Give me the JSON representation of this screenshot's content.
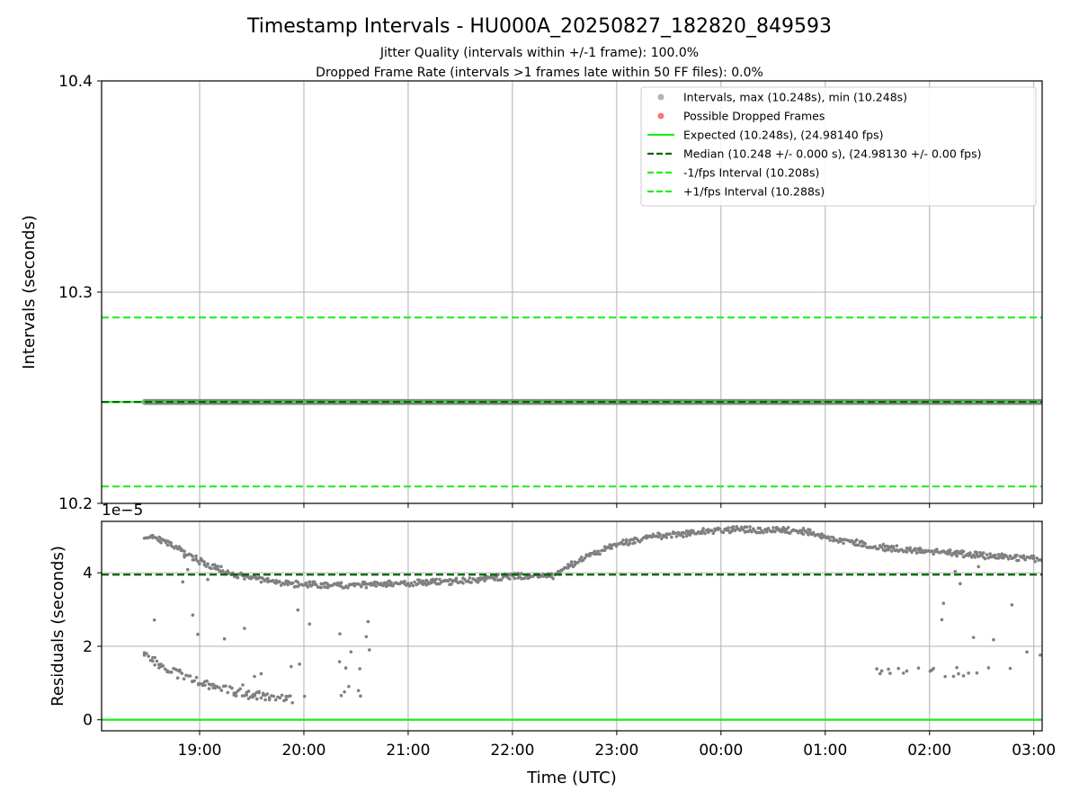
{
  "figure": {
    "title": "Timestamp Intervals - HU000A_20250827_182820_849593",
    "subtitle_1": "Jitter Quality (intervals within +/-1 frame): 100.0%",
    "subtitle_2": "Dropped Frame Rate (intervals >1 frames late within 50 FF files): 0.0%",
    "xlabel": "Time (UTC)"
  },
  "chart_data": [
    {
      "type": "scatter",
      "panel": "top",
      "ylabel": "Intervals (seconds)",
      "ylim": [
        10.2,
        10.4
      ],
      "yticks": [
        "10.2",
        "10.3",
        "10.4"
      ],
      "xlim_hours": [
        18.06,
        27.08
      ],
      "grid": true,
      "legend_position": "top-right",
      "series": [
        {
          "name": "Intervals, max (10.248s), min (10.248s)",
          "kind": "points",
          "color": "#808080",
          "x_start_hours": 18.47,
          "x_end_hours": 27.08,
          "y": 10.248
        },
        {
          "name": "Possible Dropped Frames",
          "kind": "points",
          "color": "#ff6666",
          "points": []
        },
        {
          "name": "Expected (10.248s), (24.98140 fps)",
          "kind": "hline",
          "style": "solid",
          "color": "#22ee22",
          "y": 10.248
        },
        {
          "name": "Median (10.248 +/- 0.000 s), (24.98130 +/- 0.00 fps)",
          "kind": "hline",
          "style": "dashed",
          "color": "#006400",
          "y": 10.248
        },
        {
          "name": "-1/fps Interval (10.208s)",
          "kind": "hline",
          "style": "dashed",
          "color": "#22ee22",
          "y": 10.208
        },
        {
          "name": "+1/fps Interval (10.288s)",
          "kind": "hline",
          "style": "dashed",
          "color": "#22ee22",
          "y": 10.288
        }
      ]
    },
    {
      "type": "scatter",
      "panel": "bottom",
      "ylabel": "Residuals (seconds)",
      "offset_label": "1e−5",
      "ylim": [
        -0.3,
        5.4
      ],
      "yticks": [
        "0",
        "2",
        "4"
      ],
      "xlim_hours": [
        18.06,
        27.08
      ],
      "xticks": [
        "19:00",
        "20:00",
        "21:00",
        "22:00",
        "23:00",
        "00:00",
        "01:00",
        "02:00",
        "03:00"
      ],
      "xtick_hours": [
        19,
        20,
        21,
        22,
        23,
        24,
        25,
        26,
        27
      ],
      "grid": true,
      "median_residual": 3.95,
      "expected_residual": 0,
      "trend_hours": [
        18.47,
        18.7,
        19.0,
        19.3,
        19.6,
        19.8,
        20.0,
        20.3,
        20.6,
        21.0,
        21.5,
        22.0,
        22.4,
        22.5,
        22.7,
        23.0,
        23.3,
        23.7,
        24.0,
        24.5,
        24.8,
        25.0,
        25.3,
        25.6,
        26.0,
        26.5,
        27.08
      ],
      "trend_values": [
        5.0,
        4.8,
        4.3,
        3.95,
        3.8,
        3.7,
        3.65,
        3.65,
        3.65,
        3.7,
        3.75,
        3.9,
        3.9,
        4.1,
        4.4,
        4.75,
        4.95,
        5.05,
        5.15,
        5.15,
        5.1,
        4.95,
        4.8,
        4.65,
        4.55,
        4.45,
        4.35
      ],
      "lower_branch_hours": [
        18.47,
        18.7,
        19.0,
        19.3,
        19.6,
        19.9
      ],
      "lower_branch_values": [
        1.75,
        1.35,
        1.05,
        0.8,
        0.65,
        0.55
      ]
    }
  ]
}
